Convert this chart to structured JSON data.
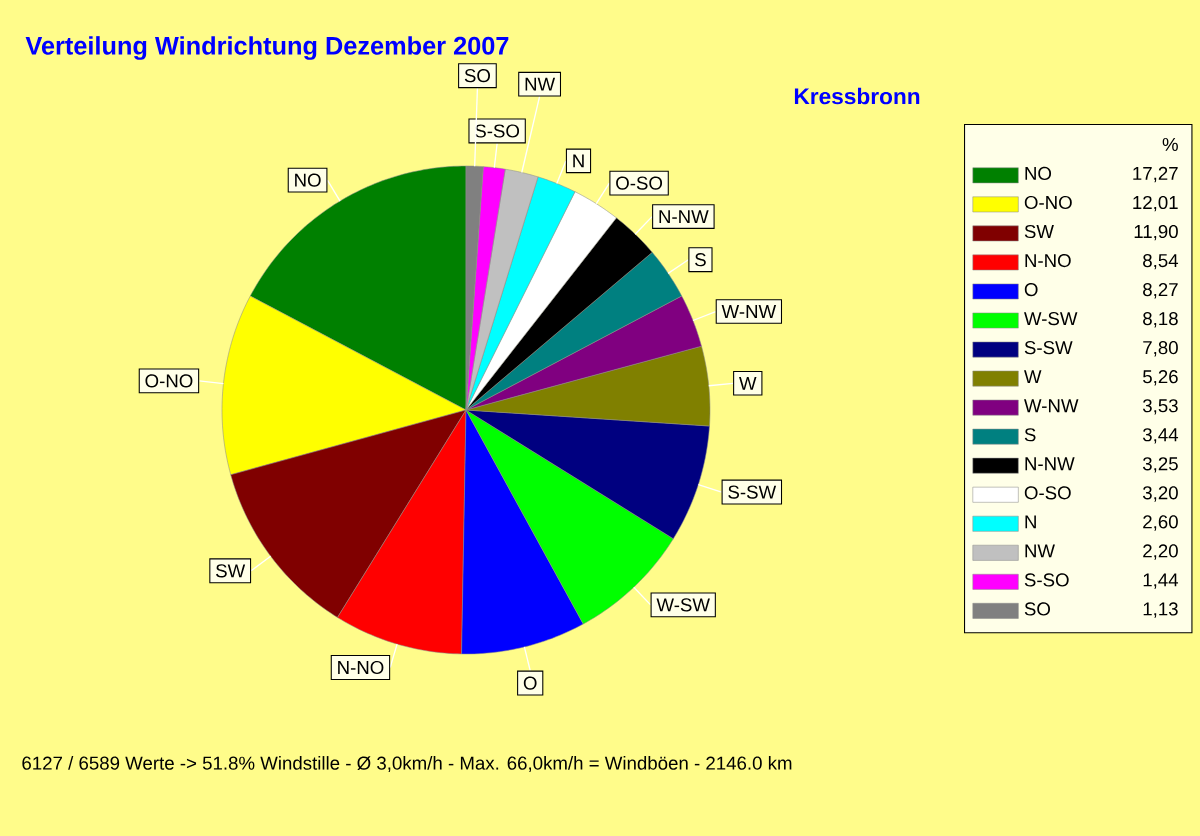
{
  "chart_data": {
    "type": "pie",
    "title": "Verteilung Windrichtung   Dezember 2007",
    "subtitle": "Kressbronn",
    "legend_title": "%",
    "legend": "right",
    "categories": [
      "NO",
      "O-NO",
      "SW",
      "N-NO",
      "O",
      "W-SW",
      "S-SW",
      "W",
      "W-NW",
      "S",
      "N-NW",
      "O-SO",
      "N",
      "NW",
      "S-SO",
      "SO"
    ],
    "values": [
      17.27,
      12.01,
      11.9,
      8.54,
      8.27,
      8.18,
      7.8,
      5.26,
      3.53,
      3.44,
      3.25,
      3.2,
      2.6,
      2.2,
      1.44,
      1.13
    ],
    "value_labels": [
      "17,27",
      "12,01",
      "11,90",
      "8,54",
      "8,27",
      "8,18",
      "7,80",
      "5,26",
      "3,53",
      "3,44",
      "3,25",
      "3,20",
      "2,60",
      "2,20",
      "1,44",
      "1,13"
    ],
    "colors": [
      "#008000",
      "#ffff00",
      "#800000",
      "#ff0000",
      "#0000ff",
      "#00ff00",
      "#000080",
      "#808000",
      "#800080",
      "#008080",
      "#000000",
      "#ffffff",
      "#00ffff",
      "#c0c0c0",
      "#ff00ff",
      "#808080"
    ],
    "annotations": [
      "6127 / 6589 Werte  -> 51.8% Windstille   -   Ø 3,0km/h  -  Max. 66,0km/h = Windböen   -   2146.0 km"
    ]
  }
}
